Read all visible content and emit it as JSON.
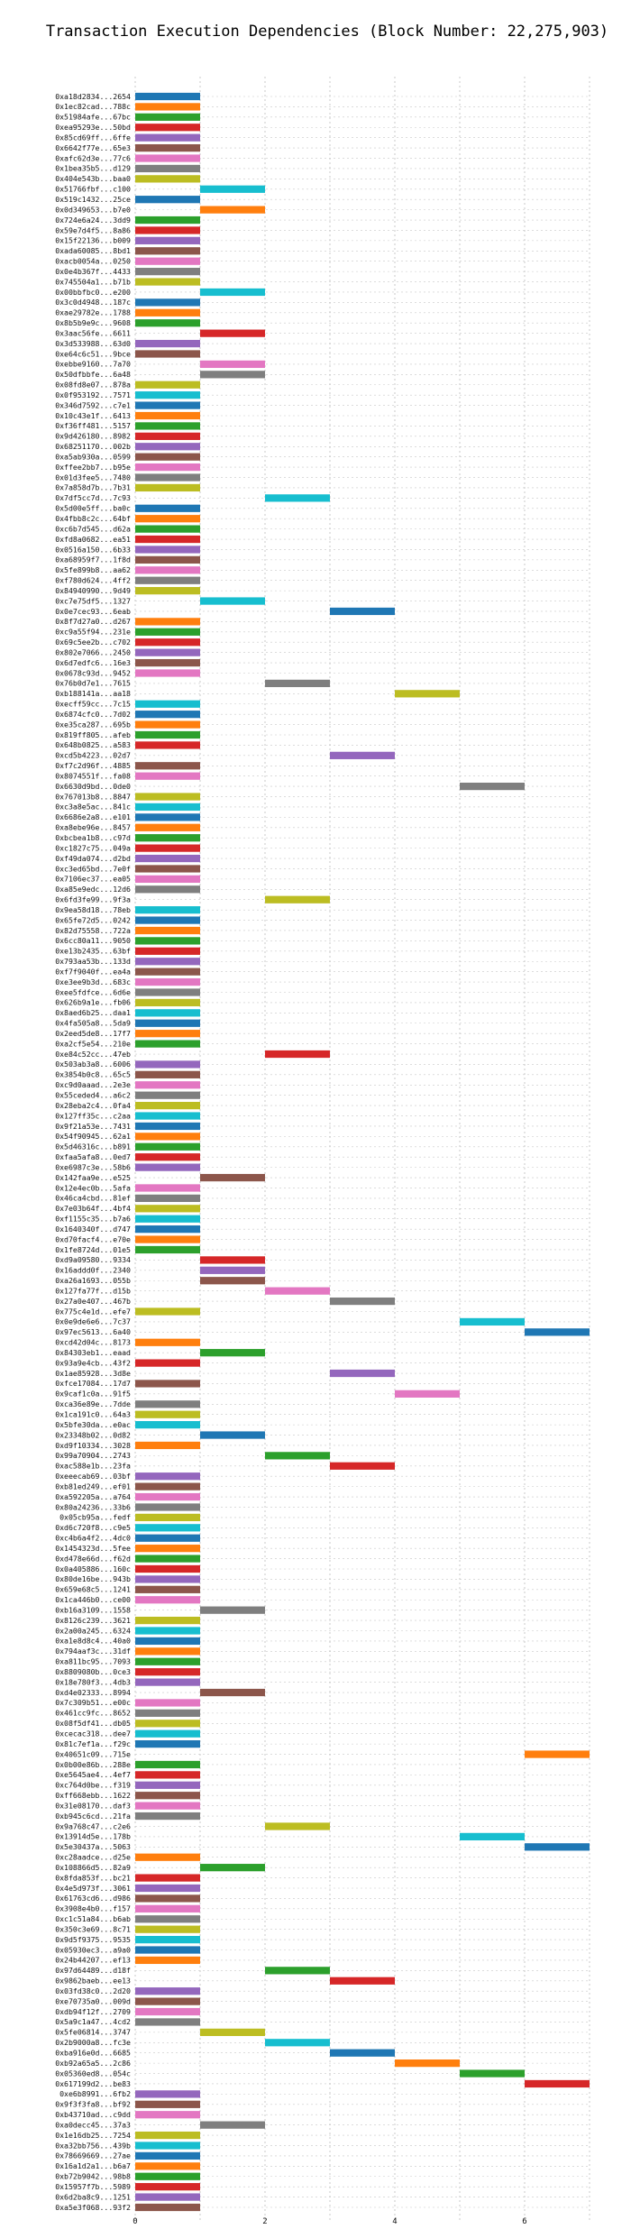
{
  "chart_data": {
    "type": "bar",
    "orientation": "horizontal",
    "layout": "gantt",
    "title": "Transaction Execution Dependencies (Block Number: 22,275,903)",
    "xlabel": "",
    "ylabel": "",
    "xlim": [
      0,
      7
    ],
    "xticks": [
      0,
      2,
      4,
      6
    ],
    "grid": true,
    "legend": "none",
    "palette": [
      "#1f77b4",
      "#ff7f0e",
      "#2ca02c",
      "#d62728",
      "#9467bd",
      "#8c564b",
      "#e377c2",
      "#7f7f7f",
      "#bcbd22",
      "#17becf"
    ],
    "labels": [
      "0xa18d2834...2654",
      "0x1ec82cad...788c",
      "0x51984afe...67bc",
      "0xea95293e...50bd",
      "0x85cd69ff...6ffe",
      "0x6642f77e...65e3",
      "0xafc62d3e...77c6",
      "0x1bea35b5...d129",
      "0x404e543b...baa0",
      "0x51766fbf...c100",
      "0x519c1432...25ce",
      "0x0d349653...b7e0",
      "0x724e6a24...3dd9",
      "0x59e7d4f5...8a86",
      "0x15f22136...b009",
      "0xada60085...8bd1",
      "0xacb0054a...0250",
      "0x0e4b367f...4433",
      "0x745504a1...b71b",
      "0x00bbfbc0...e200",
      "0x3c0d4948...187c",
      "0xae29782e...1788",
      "0x8b5b9e9c...9608",
      "0x3aac56fe...6611",
      "0x3d533988...63d0",
      "0xe64c6c51...9bce",
      "0xebbe9160...7a70",
      "0x50dfbbfe...6a48",
      "0x08fd8e07...878a",
      "0x0f953192...7571",
      "0x346d7592...c7e1",
      "0x10c43e1f...6413",
      "0xf36ff481...5157",
      "0x9d426180...8982",
      "0x68251170...002b",
      "0xa5ab930a...0599",
      "0xffee2bb7...b95e",
      "0x01d3fee5...7480",
      "0x7a858d7b...7b31",
      "0x7df5cc7d...7c93",
      "0x5d00e5ff...ba0c",
      "0x4fbb8c2c...64bf",
      "0xc6b7d545...d62a",
      "0xfd8a0682...ea51",
      "0x0516a150...6b33",
      "0xa68959f7...1f8d",
      "0x5fe899b8...aa62",
      "0xf780d624...4ff2",
      "0x84940990...9d49",
      "0xc7e75df5...1327",
      "0x0e7cec93...6eab",
      "0x8f7d27a0...d267",
      "0xc9a55f94...231e",
      "0x69c5ee2b...c702",
      "0x802e7066...2450",
      "0x6d7edfc6...16e3",
      "0x0678c93d...9452",
      "0x76b0d7e1...7615",
      "0xb188141a...aa18",
      "0xecff59cc...7c15",
      "0x6874cfc0...7d02",
      "0xe35ca287...695b",
      "0x819ff805...afeb",
      "0x648b0825...a583",
      "0xcd5b4223...02d7",
      "0xf7c2d96f...4885",
      "0x8074551f...fa08",
      "0x6630d9bd...0de0",
      "0x767013b8...8847",
      "0xc3a8e5ac...841c",
      "0x6686e2a8...e101",
      "0xa8ebe96e...8457",
      "0xbcbea1b8...c97d",
      "0xc1827c75...049a",
      "0xf49da074...d2bd",
      "0xc3ed65bd...7e0f",
      "0x7106ec37...ea05",
      "0xa85e9edc...12d6",
      "0x6fd3fe99...9f3a",
      "0x9ea58d18...78eb",
      "0x65fe72d5...0242",
      "0x82d75558...722a",
      "0x6cc80a11...9050",
      "0xe13b2435...63bf",
      "0x793aa53b...133d",
      "0xf7f9040f...ea4a",
      "0xe3ee9b3d...683c",
      "0xee5fdfce...6d6e",
      "0x626b9a1e...fb06",
      "0x8aed6b25...daa1",
      "0x4fa505a8...5da9",
      "0x2eed5de8...17f7",
      "0xa2cf5e54...210e",
      "0xe84c52cc...47eb",
      "0x503ab3a8...6006",
      "0x3854b0c8...65c5",
      "0xc9d0aaad...2e3e",
      "0x55ceded4...a6c2",
      "0x28eba2c4...0fa4",
      "0x127ff35c...c2aa",
      "0x9f21a53e...7431",
      "0x54f90945...62a1",
      "0x5d46316c...b891",
      "0xfaa5afa8...0ed7",
      "0xe6987c3e...58b6",
      "0x142faa9e...e525",
      "0x12e4ec0b...5afa",
      "0x46ca4cbd...81ef",
      "0x7e03b64f...4bf4",
      "0xf1155c35...b7a6",
      "0x1640340f...d747",
      "0xd70facf4...e70e",
      "0x1fe8724d...01e5",
      "0xd9a09580...9334",
      "0x16addd0f...2340",
      "0xa26a1693...055b",
      "0x127fa77f...d15b",
      "0x27a0e407...467b",
      "0x775c4e1d...efe7",
      "0x0e9de6e6...7c37",
      "0x97ec5613...6a40",
      "0xcd42d04c...8173",
      "0x84303eb1...eaad",
      "0x93a9e4cb...43f2",
      "0x1ae85928...3d8e",
      "0xfce17084...17d7",
      "0x9caf1c0a...91f5",
      "0xca36e89e...7dde",
      "0x1ca191c0...64a3",
      "0x5bfe30da...e0ac",
      "0x23348b02...0d82",
      "0xd9f10334...3028",
      "0x99a70904...2743",
      "0xac588e1b...23fa",
      "0xeeecab69...03bf",
      "0xb81ed249...ef01",
      "0xa592205a...a764",
      "0x80a24236...33b6",
      "0x05cb95a...fedf",
      "0xd6c720f8...c9e5",
      "0xc4b6a4f2...4dc0",
      "0x1454323d...5fee",
      "0xd478e66d...f62d",
      "0x0a405886...160c",
      "0x80de16be...943b",
      "0x659e68c5...1241",
      "0x1ca446b0...ce00",
      "0xb16a3109...1558",
      "0x8126c239...3621",
      "0x2a00a245...6324",
      "0xa1e8d8c4...40a0",
      "0x794aaf3c...31df",
      "0xa811bc95...7093",
      "0x8809080b...0ce3",
      "0x18e780f3...4db3",
      "0xd4e02333...8994",
      "0x7c309b51...e00c",
      "0x461cc9fc...8652",
      "0x08f5df41...db05",
      "0xcecac318...dee7",
      "0x81c7ef1a...f29c",
      "0x40651c09...715e",
      "0x0b00e86b...288e",
      "0xe5645ae4...4ef7",
      "0xc764d0be...f319",
      "0xff668ebb...1622",
      "0x31e08170...daf3",
      "0xb945c6cd...21fa",
      "0x9a768c47...c2e6",
      "0x13914d5e...178b",
      "0x5e30437a...5063",
      "0xc28aadce...d25e",
      "0x108866d5...82a9",
      "0x8fda853f...bc21",
      "0x4e5d973f...3061",
      "0x61763cd6...d986",
      "0x3908e4b0...f157",
      "0xc1c51a84...b6ab",
      "0x350c3e69...8c71",
      "0x9d5f9375...9535",
      "0x05930ec3...a9a0",
      "0x24b44207...ef13",
      "0x97d64489...d18f",
      "0x9862baeb...ee13",
      "0x03fd38c0...2d20",
      "0xe70735a0...009d",
      "0xdb94f12f...2709",
      "0x5a9c1a47...4cd2",
      "0x5fe06814...3747",
      "0x2b9000a8...fc3e",
      "0xba916e0d...6685",
      "0xb92a65a5...2c86",
      "0x05360ed8...054c",
      "0x617199d2...be83",
      "0xe6b8991...6fb2",
      "0x9f3f3fa8...bf92",
      "0xb43710ad...c9dd",
      "0xa0decc45...37a3",
      "0x1e16db25...7254",
      "0xa32bb756...439b",
      "0x78669669...27ae",
      "0x16a1d2a1...b6a7",
      "0xb72b9042...98b8",
      "0x15957f7b...5989",
      "0x6d2ba8c9...1251",
      "0xa5e3f068...93f2"
    ],
    "starts": [
      0,
      0,
      0,
      0,
      0,
      0,
      0,
      0,
      0,
      1,
      0,
      1,
      0,
      0,
      0,
      0,
      0,
      0,
      0,
      1,
      0,
      0,
      0,
      1,
      0,
      0,
      1,
      1,
      0,
      0,
      0,
      0,
      0,
      0,
      0,
      0,
      0,
      0,
      0,
      2,
      0,
      0,
      0,
      0,
      0,
      0,
      0,
      0,
      0,
      1,
      3,
      0,
      0,
      0,
      0,
      0,
      0,
      2,
      4,
      0,
      0,
      0,
      0,
      0,
      3,
      0,
      0,
      5,
      0,
      0,
      0,
      0,
      0,
      0,
      0,
      0,
      0,
      0,
      2,
      0,
      0,
      0,
      0,
      0,
      0,
      0,
      0,
      0,
      0,
      0,
      0,
      0,
      0,
      2,
      0,
      0,
      0,
      0,
      0,
      0,
      0,
      0,
      0,
      0,
      0,
      1,
      0,
      0,
      0,
      0,
      0,
      0,
      0,
      1,
      1,
      1,
      2,
      3,
      0,
      5,
      6,
      0,
      1,
      0,
      3,
      0,
      4,
      0,
      0,
      0,
      1,
      0,
      2,
      3,
      0,
      0,
      0,
      0,
      0,
      0,
      0,
      0,
      0,
      0,
      0,
      0,
      0,
      1,
      0,
      0,
      0,
      0,
      0,
      0,
      0,
      1,
      0,
      0,
      0,
      0,
      0,
      6,
      0,
      0,
      0,
      0,
      0,
      0,
      2,
      5,
      6,
      0,
      1,
      0,
      0,
      0,
      0,
      0,
      0,
      0,
      0,
      0,
      2,
      3,
      0,
      0,
      0,
      0,
      1,
      2,
      3,
      4,
      5,
      6,
      0,
      0,
      0,
      1,
      0,
      0,
      0,
      0,
      0,
      0,
      0,
      0
    ],
    "durations": [
      1,
      1,
      1,
      1,
      1,
      1,
      1,
      1,
      1,
      1,
      1,
      1,
      1,
      1,
      1,
      1,
      1,
      1,
      1,
      1,
      1,
      1,
      1,
      1,
      1,
      1,
      1,
      1,
      1,
      1,
      1,
      1,
      1,
      1,
      1,
      1,
      1,
      1,
      1,
      1,
      1,
      1,
      1,
      1,
      1,
      1,
      1,
      1,
      1,
      1,
      1,
      1,
      1,
      1,
      1,
      1,
      1,
      1,
      1,
      1,
      1,
      1,
      1,
      1,
      1,
      1,
      1,
      1,
      1,
      1,
      1,
      1,
      1,
      1,
      1,
      1,
      1,
      1,
      1,
      1,
      1,
      1,
      1,
      1,
      1,
      1,
      1,
      1,
      1,
      1,
      1,
      1,
      1,
      1,
      1,
      1,
      1,
      1,
      1,
      1,
      1,
      1,
      1,
      1,
      1,
      1,
      1,
      1,
      1,
      1,
      1,
      1,
      1,
      1,
      1,
      1,
      1,
      1,
      1,
      1,
      1,
      1,
      1,
      1,
      1,
      1,
      1,
      1,
      1,
      1,
      1,
      1,
      1,
      1,
      1,
      1,
      1,
      1,
      1,
      1,
      1,
      1,
      1,
      1,
      1,
      1,
      1,
      1,
      1,
      1,
      1,
      1,
      1,
      1,
      1,
      1,
      1,
      1,
      1,
      1,
      1,
      1,
      1,
      1,
      1,
      1,
      1,
      1,
      1,
      1,
      1,
      1,
      1,
      1,
      1,
      1,
      1,
      1,
      1,
      1,
      1,
      1,
      1,
      1,
      1,
      1,
      1,
      1,
      1,
      1,
      1,
      1,
      1,
      1,
      1,
      1,
      1,
      1,
      1,
      1,
      1,
      1,
      1,
      1,
      1,
      1
    ]
  }
}
